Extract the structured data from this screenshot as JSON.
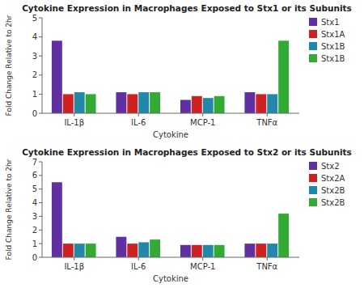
{
  "chart_data": [
    {
      "type": "bar",
      "title": "Cytokine Expression in Macrophages Exposed to Stx1 or its Subunits",
      "x_label": "Cytokine",
      "y_label": "Fold Change Relative to 2hr",
      "categories": [
        "IL-1β",
        "IL-6",
        "MCP-1",
        "TNFα"
      ],
      "series": [
        {
          "name": "Stx1",
          "color": "#6030a0",
          "values": [
            3.8,
            1.1,
            0.7,
            1.1
          ]
        },
        {
          "name": "Stx1A",
          "color": "#cc2222",
          "values": [
            1.0,
            1.0,
            0.9,
            1.0
          ]
        },
        {
          "name": "Stx1B",
          "color": "#2288aa",
          "values": [
            1.1,
            1.1,
            0.8,
            1.0
          ]
        },
        {
          "name": "Stx1B",
          "color": "#33aa33",
          "values": [
            1.0,
            1.1,
            0.9,
            3.8
          ]
        }
      ],
      "ylim": [
        0,
        5
      ],
      "yticks": [
        0,
        1,
        2,
        3,
        4,
        5
      ],
      "grid": false,
      "legend": "upper right"
    },
    {
      "type": "bar",
      "title": "Cytokine Expression in Macrophages Exposed to Stx2 or its Subunits",
      "x_label": "Cytokine",
      "y_label": "Fold Change Relative to 2hr",
      "categories": [
        "IL-1β",
        "IL-6",
        "MCP-1",
        "TNFα"
      ],
      "series": [
        {
          "name": "Stx2",
          "color": "#6030a0",
          "values": [
            5.5,
            1.5,
            0.9,
            1.0
          ]
        },
        {
          "name": "Stx2A",
          "color": "#cc2222",
          "values": [
            1.0,
            1.0,
            0.9,
            1.0
          ]
        },
        {
          "name": "Stx2B",
          "color": "#2288aa",
          "values": [
            1.0,
            1.1,
            0.9,
            1.0
          ]
        },
        {
          "name": "Stx2B",
          "color": "#33aa33",
          "values": [
            1.0,
            1.3,
            0.9,
            3.2
          ]
        }
      ],
      "ylim": [
        0,
        7
      ],
      "yticks": [
        0,
        1,
        2,
        3,
        4,
        5,
        6,
        7
      ],
      "grid": false,
      "legend": "upper right"
    }
  ]
}
